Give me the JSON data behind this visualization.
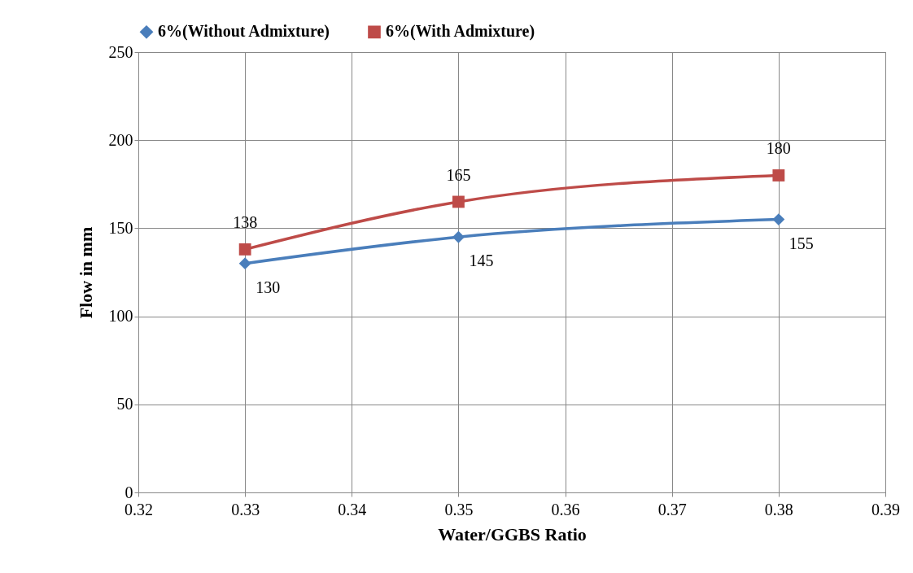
{
  "chart_data": {
    "type": "line",
    "xlabel": "Water/GGBS    Ratio",
    "ylabel": "Flow in mm",
    "x": [
      0.33,
      0.35,
      0.38
    ],
    "series": [
      {
        "name": "6%(Without Admixture)",
        "color": "#4a7ebb",
        "marker": "diamond",
        "values": [
          130,
          145,
          155
        ]
      },
      {
        "name": "6%(With Admixture)",
        "color": "#be4b48",
        "marker": "square",
        "values": [
          138,
          165,
          180
        ]
      }
    ],
    "xlim": [
      0.32,
      0.39
    ],
    "xticks": [
      0.32,
      0.33,
      0.34,
      0.35,
      0.36,
      0.37,
      0.38,
      0.39
    ],
    "ylim": [
      0,
      250
    ],
    "yticks": [
      0,
      50,
      100,
      150,
      200,
      250
    ],
    "grid": true,
    "legend": "top",
    "data_labels": true,
    "line_style": "solid"
  }
}
